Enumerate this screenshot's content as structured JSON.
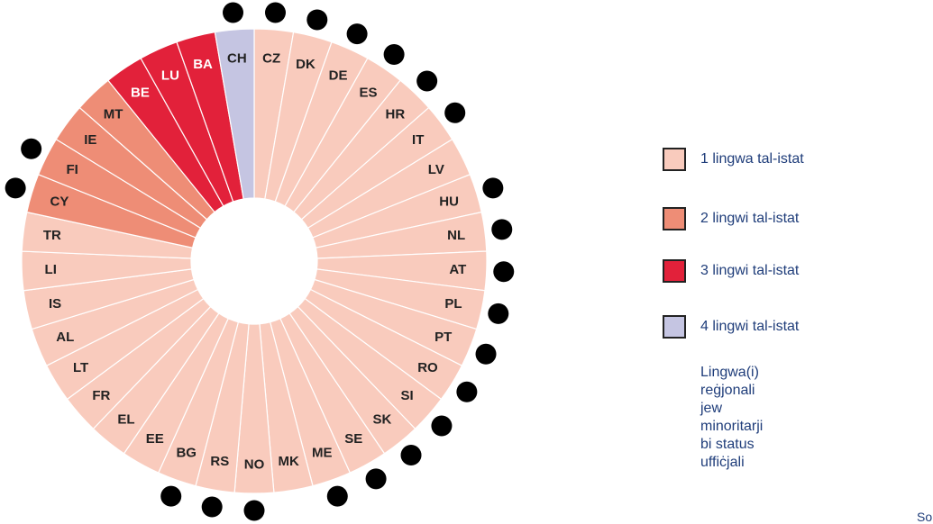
{
  "chart_data": {
    "type": "pie",
    "segments": [
      {
        "label": "CZ",
        "languages": 1,
        "minority": true
      },
      {
        "label": "DK",
        "languages": 1,
        "minority": true
      },
      {
        "label": "DE",
        "languages": 1,
        "minority": true
      },
      {
        "label": "ES",
        "languages": 1,
        "minority": true
      },
      {
        "label": "HR",
        "languages": 1,
        "minority": true
      },
      {
        "label": "IT",
        "languages": 1,
        "minority": true
      },
      {
        "label": "LV",
        "languages": 1,
        "minority": false
      },
      {
        "label": "HU",
        "languages": 1,
        "minority": true
      },
      {
        "label": "NL",
        "languages": 1,
        "minority": true
      },
      {
        "label": "AT",
        "languages": 1,
        "minority": true
      },
      {
        "label": "PL",
        "languages": 1,
        "minority": true
      },
      {
        "label": "PT",
        "languages": 1,
        "minority": true
      },
      {
        "label": "RO",
        "languages": 1,
        "minority": true
      },
      {
        "label": "SI",
        "languages": 1,
        "minority": true
      },
      {
        "label": "SK",
        "languages": 1,
        "minority": true
      },
      {
        "label": "SE",
        "languages": 1,
        "minority": true
      },
      {
        "label": "ME",
        "languages": 1,
        "minority": true
      },
      {
        "label": "MK",
        "languages": 1,
        "minority": false
      },
      {
        "label": "NO",
        "languages": 1,
        "minority": true
      },
      {
        "label": "RS",
        "languages": 1,
        "minority": true
      },
      {
        "label": "BG",
        "languages": 1,
        "minority": true
      },
      {
        "label": "EE",
        "languages": 1,
        "minority": false
      },
      {
        "label": "EL",
        "languages": 1,
        "minority": false
      },
      {
        "label": "FR",
        "languages": 1,
        "minority": false
      },
      {
        "label": "LT",
        "languages": 1,
        "minority": false
      },
      {
        "label": "AL",
        "languages": 1,
        "minority": false
      },
      {
        "label": "IS",
        "languages": 1,
        "minority": false
      },
      {
        "label": "LI",
        "languages": 1,
        "minority": false
      },
      {
        "label": "TR",
        "languages": 1,
        "minority": false
      },
      {
        "label": "CY",
        "languages": 2,
        "minority": true
      },
      {
        "label": "FI",
        "languages": 2,
        "minority": true
      },
      {
        "label": "IE",
        "languages": 2,
        "minority": false
      },
      {
        "label": "MT",
        "languages": 2,
        "minority": false
      },
      {
        "label": "BE",
        "languages": 3,
        "minority": false
      },
      {
        "label": "LU",
        "languages": 3,
        "minority": false
      },
      {
        "label": "BA",
        "languages": 3,
        "minority": false
      },
      {
        "label": "CH",
        "languages": 4,
        "minority": true
      }
    ],
    "colors": {
      "1": "#f9cbbd",
      "2": "#ee8d76",
      "3": "#e2213a",
      "4": "#c5c5e2"
    },
    "label_colors": {
      "1": "#222222",
      "2": "#222222",
      "3": "#ffffff",
      "4": "#222222"
    }
  },
  "legend": {
    "items": [
      {
        "label": "1 lingwa tal-istat",
        "color": "#f9cbbd"
      },
      {
        "label": "2 lingwi tal-istat",
        "color": "#ee8d76"
      },
      {
        "label": "3 lingwi tal-istat",
        "color": "#e2213a"
      },
      {
        "label": "4 lingwi tal-istat",
        "color": "#c5c5e2"
      }
    ],
    "minority_line1": "Lingwa(i) reġjonali jew",
    "minority_line2": "minoritarji bi status uffiċjali"
  },
  "source_text": "So"
}
